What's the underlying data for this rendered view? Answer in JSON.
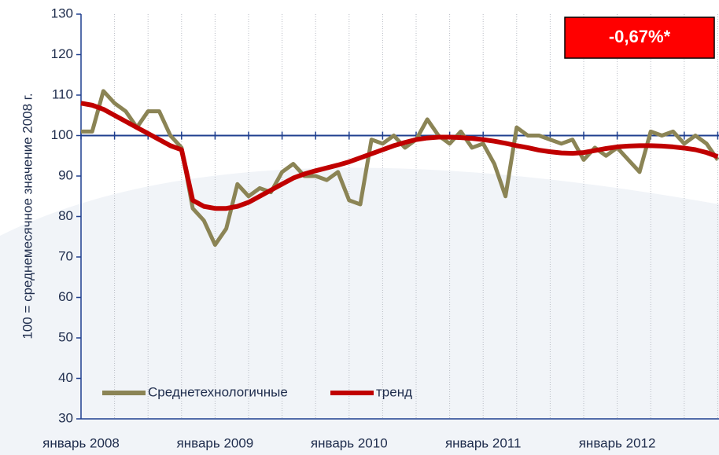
{
  "chart_data": {
    "type": "line",
    "y_label": "100 = среднемесячное значение 2008 г.",
    "annotation": "-0,67%*",
    "categories": [
      "январь 2008",
      null,
      null,
      null,
      null,
      null,
      null,
      null,
      null,
      null,
      null,
      null,
      "январь 2009",
      null,
      null,
      null,
      null,
      null,
      null,
      null,
      null,
      null,
      null,
      null,
      "январь 2010",
      null,
      null,
      null,
      null,
      null,
      null,
      null,
      null,
      null,
      null,
      null,
      "январь 2011",
      null,
      null,
      null,
      null,
      null,
      null,
      null,
      null,
      null,
      null,
      null,
      "январь 2012",
      null,
      null,
      null,
      null,
      null,
      null,
      null,
      null,
      null
    ],
    "series": [
      {
        "name": "Среднетехнологичные",
        "color": "#8b8455",
        "values": [
          101,
          101,
          111,
          108,
          106,
          102,
          106,
          106,
          100,
          97,
          82,
          79,
          73,
          77,
          88,
          85,
          87,
          86,
          91,
          93,
          90,
          90,
          89,
          91,
          84,
          83,
          99,
          98,
          100,
          97,
          99,
          104,
          100,
          98,
          101,
          97,
          98,
          93,
          85,
          102,
          100,
          100,
          99,
          98,
          99,
          94,
          97,
          95,
          97,
          94,
          91,
          101,
          100,
          101,
          98,
          100,
          98,
          94
        ]
      },
      {
        "name": "тренд",
        "color": "#c00000",
        "values": [
          108,
          107.5,
          106.5,
          105,
          103.5,
          102,
          100.5,
          99,
          97.5,
          96.5,
          84,
          82.5,
          82,
          82,
          82.5,
          83.5,
          85,
          86.5,
          88,
          89.5,
          90.5,
          91.3,
          92,
          92.7,
          93.5,
          94.5,
          95.5,
          96.5,
          97.5,
          98.3,
          99,
          99.4,
          99.6,
          99.6,
          99.5,
          99.3,
          99,
          98.6,
          98.1,
          97.5,
          97,
          96.4,
          96,
          95.7,
          95.6,
          95.8,
          96.3,
          96.8,
          97.2,
          97.4,
          97.5,
          97.5,
          97.4,
          97.2,
          96.9,
          96.5,
          95.8,
          94.8
        ]
      }
    ],
    "ylim": [
      30,
      130
    ],
    "yticks": [
      30,
      40,
      50,
      60,
      70,
      80,
      90,
      100,
      110,
      120,
      130
    ],
    "reference_line": 100,
    "grid": true,
    "legend": "bottom-left"
  }
}
